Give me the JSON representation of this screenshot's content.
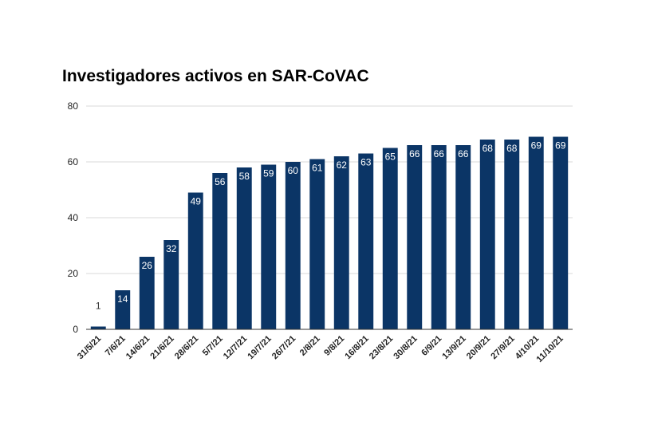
{
  "chart_data": {
    "type": "bar",
    "title": "Investigadores activos en SAR-CoVAC",
    "xlabel": "",
    "ylabel": "",
    "ylim": [
      0,
      80
    ],
    "yticks": [
      0,
      20,
      40,
      60,
      80
    ],
    "grid": true,
    "legend": "none",
    "categories": [
      "31/5/21",
      "7/6/21",
      "14/6/21",
      "21/6/21",
      "28/6/21",
      "5/7/21",
      "12/7/21",
      "19/7/21",
      "26/7/21",
      "2/8/21",
      "9/8/21",
      "16/8/21",
      "23/8/21",
      "30/8/21",
      "6/9/21",
      "13/9/21",
      "20/9/21",
      "27/9/21",
      "4/10/21",
      "11/10/21"
    ],
    "values": [
      1,
      14,
      26,
      32,
      49,
      56,
      58,
      59,
      60,
      61,
      62,
      63,
      65,
      66,
      66,
      66,
      68,
      68,
      69,
      69
    ],
    "bar_color": "#0b3566",
    "label_color_inside": "#ffffff",
    "label_color_outside": "#333333"
  }
}
